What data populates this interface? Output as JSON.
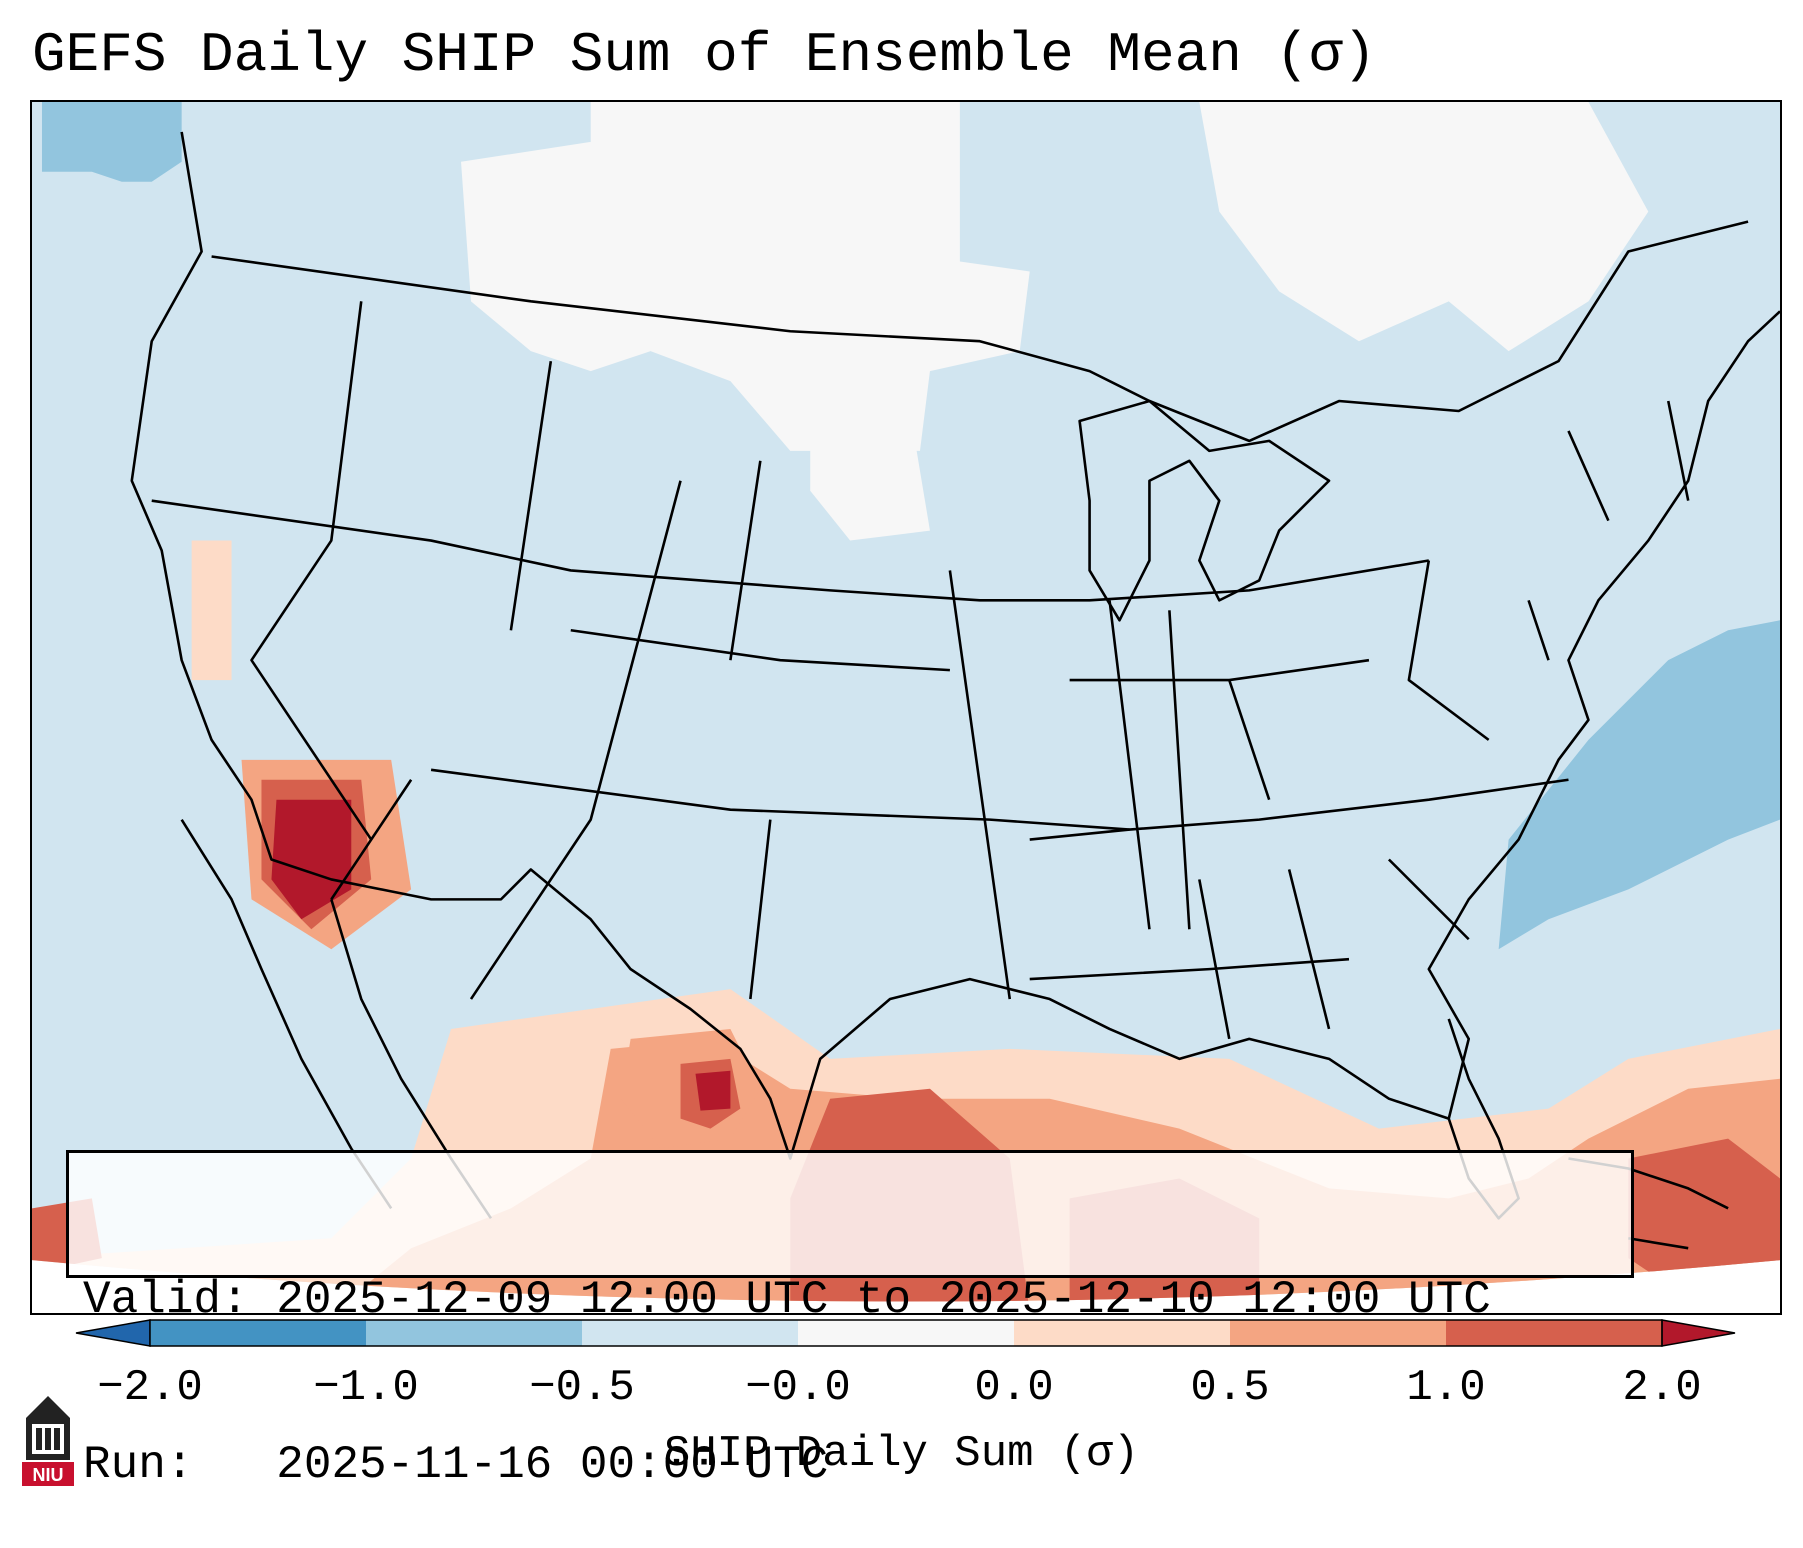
{
  "title": "GEFS Daily SHIP Sum of Ensemble Mean (σ)",
  "info": {
    "valid_line": "Valid: 2025-12-09 12:00 UTC to 2025-12-10 12:00 UTC",
    "run_line": "Run:   2025-11-16 00:00 UTC"
  },
  "colorbar": {
    "label": "SHIP Daily Sum (σ)",
    "ticks": [
      "−2.0",
      "−1.0",
      "−0.5",
      "−0.0",
      "0.0",
      "0.5",
      "1.0",
      "2.0"
    ],
    "bins": [
      {
        "range": "< -2.0",
        "color": "#2166ac"
      },
      {
        "range": "-2.0 to -1.0",
        "color": "#4393c3"
      },
      {
        "range": "-1.0 to -0.5",
        "color": "#92c5de"
      },
      {
        "range": "-0.5 to -0.0",
        "color": "#d1e5f0"
      },
      {
        "range": "-0.0 to 0.0",
        "color": "#f7f7f7"
      },
      {
        "range": "0.0 to 0.5",
        "color": "#fddbc7"
      },
      {
        "range": "0.5 to 1.0",
        "color": "#f4a582"
      },
      {
        "range": "1.0 to 2.0",
        "color": "#d6604d"
      },
      {
        "range": "> 2.0",
        "color": "#b2182b"
      }
    ]
  },
  "logo": {
    "text": "NIU",
    "color": "#c8102e"
  }
}
